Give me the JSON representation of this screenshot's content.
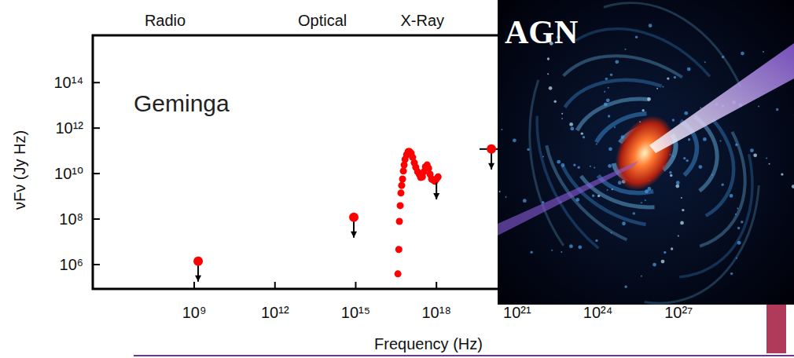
{
  "chart_data": {
    "type": "scatter",
    "title": "Geminga",
    "x_label": "Frequency (Hz)",
    "y_label": "νFν (Jy Hz)",
    "log": true,
    "color": "#ff0000",
    "marker": "circle",
    "xlim": [
      170000.0,
      1e+30
    ],
    "ylim": [
      85000.0,
      1.2e+16
    ],
    "xticks": [
      {
        "value": 1000000000.0,
        "label": "10⁹"
      },
      {
        "value": 1000000000000.0,
        "label": "10¹²"
      },
      {
        "value": 1000000000000000.0,
        "label": "10¹⁵"
      },
      {
        "value": 1e+18,
        "label": "10¹⁸"
      },
      {
        "value": 1e+21,
        "label": "10²¹"
      },
      {
        "value": 1e+24,
        "label": "10²⁴"
      },
      {
        "value": 1e+27,
        "label": "10²⁷"
      }
    ],
    "yticks": [
      {
        "value": 1000000.0,
        "label": "10⁶"
      },
      {
        "value": 100000000.0,
        "label": "10⁸"
      },
      {
        "value": 10000000000.0,
        "label": "10¹⁰"
      },
      {
        "value": 1000000000000.0,
        "label": "10¹²"
      },
      {
        "value": 100000000000000.0,
        "label": "10¹⁴"
      }
    ],
    "x": [
      1400000000.0,
      850000000000000.0,
      3.7e+16,
      4e+16,
      4.2e+16,
      4.5e+16,
      4.8e+16,
      5.1e+16,
      5.5e+16,
      5.9e+16,
      6.3e+16,
      6.8e+16,
      7.8e+16,
      8.9e+16,
      1e+17,
      1.15e+17,
      1.3e+17,
      1.5e+17,
      1.7e+17,
      2e+17,
      2.3e+17,
      2.6e+17,
      3e+17,
      3.4e+17,
      3.9e+17,
      4.5e+17,
      5.1e+17,
      5.8e+17,
      6.6e+17,
      7.6e+17,
      8.7e+17,
      1e+18,
      1.15e+18,
      1.1e+20
    ],
    "values": [
      1400000.0,
      120000000.0,
      390000.0,
      4600000.0,
      79000000.0,
      390000000.0,
      1400000000.0,
      3000000000.0,
      5800000000.0,
      13000000000.0,
      24000000000.0,
      42000000000.0,
      68000000000.0,
      93000000000.0,
      93000000000.0,
      79000000000.0,
      52000000000.0,
      30000000000.0,
      19000000000.0,
      12000000000.0,
      9300000000.0,
      6800000000.0,
      7200000000.0,
      12000000000.0,
      20000000000.0,
      24000000000.0,
      17000000000.0,
      9300000000.0,
      5800000000.0,
      5200000000.0,
      4600000000.0,
      5800000000.0,
      7200000000.0,
      120000000000.0
    ],
    "upper_limits": [
      true,
      true,
      false,
      false,
      false,
      false,
      false,
      false,
      false,
      false,
      false,
      false,
      false,
      false,
      false,
      false,
      false,
      false,
      false,
      false,
      false,
      false,
      false,
      false,
      false,
      false,
      false,
      false,
      false,
      false,
      false,
      true,
      false,
      true
    ],
    "x_ranges": [
      null,
      null,
      null,
      null,
      null,
      null,
      null,
      null,
      null,
      null,
      null,
      null,
      null,
      null,
      null,
      null,
      null,
      null,
      null,
      null,
      null,
      null,
      null,
      null,
      null,
      null,
      null,
      null,
      null,
      null,
      null,
      null,
      null,
      [
        4e+19,
        3e+20
      ]
    ],
    "annotations": [
      {
        "text": "Radio",
        "x": 83000000.0
      },
      {
        "text": "Optical",
        "x": 58000000000000.0
      },
      {
        "text": "X-Ray",
        "x": 3e+17
      },
      {
        "text": "AGN"
      }
    ]
  }
}
